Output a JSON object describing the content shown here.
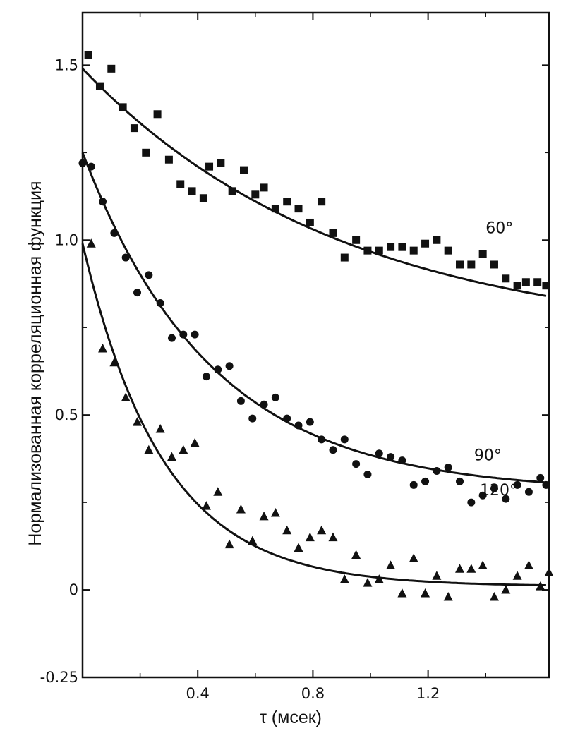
{
  "chart_data": {
    "type": "scatter",
    "xlabel": "τ (мсек)",
    "ylabel": "Нормализованная корреляционная функция",
    "xlim": [
      0,
      1.62
    ],
    "ylim": [
      -0.25,
      1.65
    ],
    "x_ticks": [
      0.4,
      0.8,
      1.2
    ],
    "x_tick_labels": [
      "0.4",
      "0.8",
      "1.2"
    ],
    "y_ticks": [
      -0.25,
      0,
      0.5,
      1.0,
      1.5
    ],
    "y_tick_labels": [
      "-0.25",
      "0",
      "0.5",
      "1.0",
      "1.5"
    ],
    "grid": false,
    "series": [
      {
        "name": "60°",
        "marker": "square",
        "fit": {
          "a": 0.78,
          "tau": 0.9,
          "c": 0.71
        },
        "x": [
          0.02,
          0.06,
          0.1,
          0.14,
          0.18,
          0.22,
          0.26,
          0.3,
          0.34,
          0.38,
          0.42,
          0.44,
          0.48,
          0.52,
          0.56,
          0.6,
          0.63,
          0.67,
          0.71,
          0.75,
          0.79,
          0.83,
          0.87,
          0.91,
          0.95,
          0.99,
          1.03,
          1.07,
          1.11,
          1.15,
          1.19,
          1.23,
          1.27,
          1.31,
          1.35,
          1.39,
          1.43,
          1.47,
          1.51,
          1.54,
          1.58,
          1.61
        ],
        "y": [
          1.53,
          1.44,
          1.49,
          1.38,
          1.32,
          1.25,
          1.36,
          1.23,
          1.16,
          1.14,
          1.12,
          1.21,
          1.22,
          1.14,
          1.2,
          1.13,
          1.15,
          1.09,
          1.11,
          1.09,
          1.05,
          1.11,
          1.02,
          0.95,
          1.0,
          0.97,
          0.97,
          0.98,
          0.98,
          0.97,
          0.99,
          1.0,
          0.97,
          0.93,
          0.93,
          0.96,
          0.93,
          0.89,
          0.87,
          0.88,
          0.88,
          0.87
        ]
      },
      {
        "name": "90°",
        "marker": "circle",
        "fit": {
          "a": 0.97,
          "tau": 0.45,
          "c": 0.28
        },
        "x": [
          0.0,
          0.03,
          0.07,
          0.11,
          0.15,
          0.19,
          0.23,
          0.27,
          0.31,
          0.35,
          0.39,
          0.43,
          0.47,
          0.51,
          0.55,
          0.59,
          0.63,
          0.67,
          0.71,
          0.75,
          0.79,
          0.83,
          0.87,
          0.91,
          0.95,
          0.99,
          1.03,
          1.07,
          1.11,
          1.15,
          1.19,
          1.23,
          1.27,
          1.31,
          1.35,
          1.39,
          1.43,
          1.47,
          1.51,
          1.55,
          1.59,
          1.61
        ],
        "y": [
          1.22,
          1.21,
          1.11,
          1.02,
          0.95,
          0.85,
          0.9,
          0.82,
          0.72,
          0.73,
          0.73,
          0.61,
          0.63,
          0.64,
          0.54,
          0.49,
          0.53,
          0.55,
          0.49,
          0.47,
          0.48,
          0.43,
          0.4,
          0.43,
          0.36,
          0.33,
          0.39,
          0.38,
          0.37,
          0.3,
          0.31,
          0.34,
          0.35,
          0.31,
          0.25,
          0.27,
          0.29,
          0.26,
          0.3,
          0.28,
          0.32,
          0.3
        ]
      },
      {
        "name": "120°",
        "marker": "triangle",
        "fit": {
          "a": 0.98,
          "tau": 0.28,
          "c": 0.01
        },
        "x": [
          0.03,
          0.07,
          0.11,
          0.15,
          0.19,
          0.23,
          0.27,
          0.31,
          0.35,
          0.39,
          0.43,
          0.47,
          0.51,
          0.55,
          0.59,
          0.63,
          0.67,
          0.71,
          0.75,
          0.79,
          0.83,
          0.87,
          0.91,
          0.95,
          0.99,
          1.03,
          1.07,
          1.11,
          1.15,
          1.19,
          1.23,
          1.27,
          1.31,
          1.35,
          1.39,
          1.43,
          1.47,
          1.51,
          1.55,
          1.59,
          1.62
        ],
        "y": [
          0.99,
          0.69,
          0.65,
          0.55,
          0.48,
          0.4,
          0.46,
          0.38,
          0.4,
          0.42,
          0.24,
          0.28,
          0.13,
          0.23,
          0.14,
          0.21,
          0.22,
          0.17,
          0.12,
          0.15,
          0.17,
          0.15,
          0.03,
          0.1,
          0.02,
          0.03,
          0.07,
          -0.01,
          0.09,
          -0.01,
          0.04,
          -0.02,
          0.06,
          0.06,
          0.07,
          -0.02,
          0.0,
          0.04,
          0.07,
          0.01,
          0.05
        ]
      }
    ]
  }
}
